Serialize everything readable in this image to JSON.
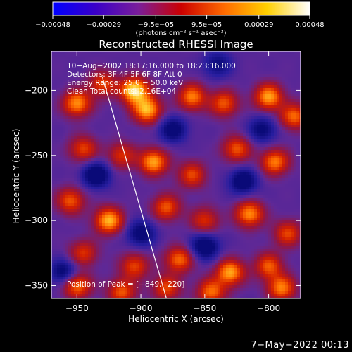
{
  "chart_data": {
    "type": "heatmap",
    "title": "Reconstructed RHESSI Image",
    "xlabel": "Heliocentric X (arcsec)",
    "ylabel": "Heliocentric Y (arcsec)",
    "xlim": [
      -970,
      -775
    ],
    "ylim": [
      -360,
      -170
    ],
    "x_ticks": [
      -950,
      -900,
      -850,
      -800
    ],
    "y_ticks": [
      -200,
      -250,
      -300,
      -350
    ],
    "x_tick_labels": [
      "−950",
      "−900",
      "−850",
      "−800"
    ],
    "y_tick_labels": [
      "−200",
      "−250",
      "−300",
      "−350"
    ],
    "colorbar": {
      "range": [
        -0.00048,
        0.00048
      ],
      "ticks": [
        -0.00048,
        -0.00029,
        -9.5e-05,
        9.5e-05,
        0.00029,
        0.00048
      ],
      "tick_labels": [
        "−0.00048",
        "−0.00029",
        "−9.5e−05",
        "9.5e−05",
        "0.00029",
        "0.00048"
      ],
      "unit_label": "(photons cm⁻² s⁻¹ asec⁻²)",
      "colors": [
        "#0000ff",
        "#3a00c8",
        "#7a1e9a",
        "#cc0000",
        "#ff6a00",
        "#ffd000",
        "#ffffff"
      ]
    },
    "annotations": [
      "10−Aug−2002 18:17:16.000 to 18:23:16.000",
      "Detectors: 3F 4F 5F 6F 8F  Att 0",
      "Energy Range: 25.0 − 50.0 keV",
      "Clean     Total counts: 2.16E+04",
      "Position of Peak = [−849,−220]"
    ],
    "limb_line": {
      "x": [
        -930,
        -880
      ],
      "y": [
        -190,
        -360
      ]
    },
    "peak": {
      "x": -849,
      "y": -220
    },
    "hot_spots": [
      {
        "x": -905,
        "y": -200,
        "v": 1.0
      },
      {
        "x": -895,
        "y": -215,
        "v": 0.85
      },
      {
        "x": -950,
        "y": -210,
        "v": 0.75
      },
      {
        "x": -930,
        "y": -195,
        "v": 0.55
      },
      {
        "x": -860,
        "y": -205,
        "v": 0.7
      },
      {
        "x": -835,
        "y": -210,
        "v": 0.6
      },
      {
        "x": -800,
        "y": -205,
        "v": 0.8
      },
      {
        "x": -780,
        "y": -220,
        "v": 0.65
      },
      {
        "x": -945,
        "y": -245,
        "v": 0.55
      },
      {
        "x": -915,
        "y": -250,
        "v": 0.5
      },
      {
        "x": -890,
        "y": -255,
        "v": 0.8
      },
      {
        "x": -860,
        "y": -265,
        "v": 0.55
      },
      {
        "x": -825,
        "y": -245,
        "v": 0.6
      },
      {
        "x": -795,
        "y": -255,
        "v": 0.7
      },
      {
        "x": -955,
        "y": -285,
        "v": 0.6
      },
      {
        "x": -925,
        "y": -300,
        "v": 0.85
      },
      {
        "x": -880,
        "y": -290,
        "v": 0.6
      },
      {
        "x": -850,
        "y": -300,
        "v": 0.5
      },
      {
        "x": -815,
        "y": -295,
        "v": 0.75
      },
      {
        "x": -785,
        "y": -310,
        "v": 0.55
      },
      {
        "x": -945,
        "y": -325,
        "v": 0.5
      },
      {
        "x": -905,
        "y": -335,
        "v": 0.55
      },
      {
        "x": -870,
        "y": -330,
        "v": 0.65
      },
      {
        "x": -830,
        "y": -340,
        "v": 0.8
      },
      {
        "x": -800,
        "y": -335,
        "v": 0.6
      },
      {
        "x": -950,
        "y": -350,
        "v": 0.7
      },
      {
        "x": -915,
        "y": -355,
        "v": 0.6
      },
      {
        "x": -880,
        "y": -352,
        "v": 0.55
      },
      {
        "x": -845,
        "y": -355,
        "v": 0.65
      },
      {
        "x": -790,
        "y": -352,
        "v": 0.7
      }
    ],
    "cold_spots": [
      {
        "x": -935,
        "y": -265,
        "v": -0.6
      },
      {
        "x": -875,
        "y": -230,
        "v": -0.5
      },
      {
        "x": -820,
        "y": -270,
        "v": -0.55
      },
      {
        "x": -900,
        "y": -310,
        "v": -0.5
      },
      {
        "x": -850,
        "y": -320,
        "v": -0.6
      },
      {
        "x": -960,
        "y": -340,
        "v": -0.5
      },
      {
        "x": -805,
        "y": -230,
        "v": -0.45
      },
      {
        "x": -840,
        "y": -180,
        "v": -0.4
      }
    ]
  },
  "footer": {
    "timestamp": "7−May−2022 00:13"
  }
}
